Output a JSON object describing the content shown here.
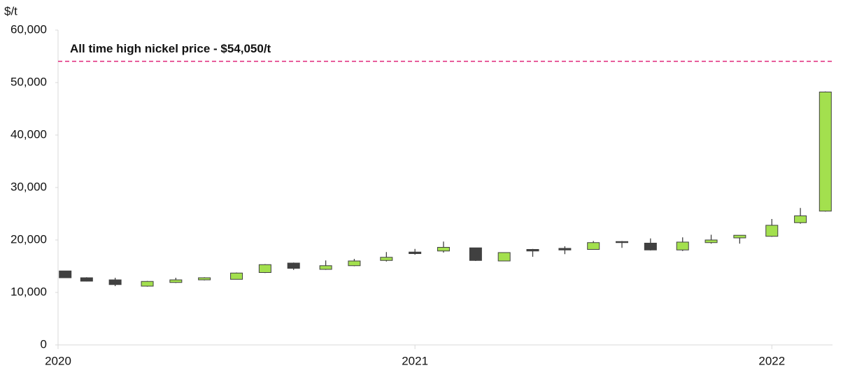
{
  "chart_data": {
    "type": "candlestick",
    "y_label": "$/t",
    "x": [
      2020.02,
      2020.08,
      2020.16,
      2020.25,
      2020.33,
      2020.41,
      2020.5,
      2020.58,
      2020.66,
      2020.75,
      2020.83,
      2020.92,
      2021.0,
      2021.08,
      2021.17,
      2021.25,
      2021.33,
      2021.42,
      2021.5,
      2021.58,
      2021.66,
      2021.75,
      2021.83,
      2021.91,
      2022.0,
      2022.08,
      2022.15
    ],
    "open": [
      14100,
      12800,
      12400,
      11200,
      11900,
      12400,
      12500,
      13800,
      15600,
      14400,
      15100,
      16100,
      17700,
      17900,
      18500,
      16000,
      18200,
      18400,
      18200,
      19700,
      19400,
      18100,
      19500,
      20400,
      20700,
      23300,
      25500
    ],
    "high": [
      14100,
      12900,
      12800,
      12200,
      12800,
      12900,
      13800,
      15400,
      15700,
      16100,
      16400,
      17700,
      18300,
      19700,
      18500,
      17600,
      18300,
      18800,
      19800,
      19800,
      20300,
      20500,
      21000,
      20900,
      24000,
      26100,
      48300
    ],
    "low": [
      12800,
      12100,
      11200,
      11100,
      11800,
      12300,
      12500,
      13700,
      14300,
      14300,
      15000,
      15900,
      17200,
      17600,
      16000,
      16000,
      16800,
      17300,
      18200,
      18500,
      18000,
      17900,
      19300,
      19300,
      20600,
      23100,
      25400
    ],
    "close": [
      12800,
      12150,
      11500,
      12100,
      12400,
      12800,
      13700,
      15300,
      14600,
      15100,
      16000,
      16700,
      17400,
      18600,
      16100,
      17600,
      17900,
      18100,
      19500,
      19500,
      18100,
      19600,
      20000,
      20900,
      22800,
      24600,
      48200
    ],
    "up_color": "#a3e04e",
    "down_color": "#404040",
    "reference_line": {
      "value": 54050,
      "label": "All time high nickel price - $54,050/t",
      "color": "#e0267a"
    },
    "xlim": [
      2020,
      2022.17
    ],
    "xticks": [
      2020,
      2021,
      2022
    ],
    "ylim": [
      0,
      60000
    ],
    "yticks": [
      0,
      {
        "value": 10000,
        "label": "10,000"
      },
      {
        "value": 20000,
        "label": "20,000"
      },
      {
        "value": 30000,
        "label": "30,000"
      },
      {
        "value": 40000,
        "label": "40,000"
      },
      {
        "value": 50000,
        "label": "50,000"
      },
      {
        "value": 60000,
        "label": "60,000"
      }
    ],
    "grid": false
  }
}
